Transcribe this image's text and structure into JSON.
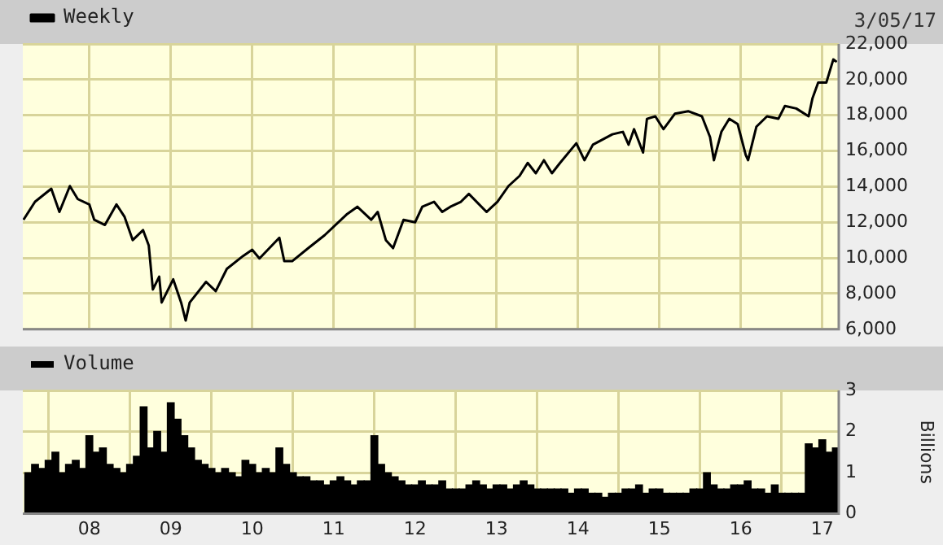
{
  "chart_data": [
    {
      "type": "line",
      "annotations": [
        "3/05/17"
      ],
      "legend": "top left",
      "grid": true,
      "tick_labels": "y",
      "marker": "none",
      "series": [
        {
          "name": "Weekly",
          "color": "#000000",
          "x": [
            "2007-03-10",
            "2007-05-01",
            "2007-07-13",
            "2007-08-19",
            "2007-10-05",
            "2007-11-10",
            "2008-01-01",
            "2008-01-23",
            "2008-03-10",
            "2008-05-01",
            "2008-06-07",
            "2008-07-13",
            "2008-08-29",
            "2008-09-24",
            "2008-10-12",
            "2008-11-10",
            "2008-11-21",
            "2009-01-12",
            "2009-02-17",
            "2009-03-07",
            "2009-03-25",
            "2009-06-07",
            "2009-07-20",
            "2009-09-09",
            "2009-11-21",
            "2010-01-01",
            "2010-02-03",
            "2010-05-01",
            "2010-05-23",
            "2010-06-28",
            "2010-09-09",
            "2010-11-21",
            "2011-02-28",
            "2011-04-16",
            "2011-06-17",
            "2011-07-16",
            "2011-08-22",
            "2011-09-24",
            "2011-11-10",
            "2012-01-01",
            "2012-02-03",
            "2012-03-25",
            "2012-05-01",
            "2012-06-07",
            "2012-07-24",
            "2012-08-29",
            "2012-11-17",
            "2013-01-05",
            "2013-02-24",
            "2013-04-13",
            "2013-05-19",
            "2013-06-25",
            "2013-07-31",
            "2013-09-06",
            "2013-10-12",
            "2013-12-24",
            "2014-01-30",
            "2014-03-07",
            "2014-06-03",
            "2014-07-20",
            "2014-08-15",
            "2014-09-09",
            "2014-10-19",
            "2014-11-06",
            "2014-12-13",
            "2015-01-19",
            "2015-03-10",
            "2015-05-08",
            "2015-07-09",
            "2015-08-15",
            "2015-09-02",
            "2015-10-05",
            "2015-11-10",
            "2015-12-17",
            "2016-01-23",
            "2016-02-03",
            "2016-03-10",
            "2016-04-27",
            "2016-06-17",
            "2016-07-16",
            "2016-09-06",
            "2016-10-31",
            "2016-11-18",
            "2016-12-13",
            "2017-01-19",
            "2017-02-20",
            "2017-03-05"
          ],
          "values": [
            12140,
            13150,
            13880,
            12580,
            14030,
            13300,
            13000,
            12140,
            11850,
            13000,
            12300,
            11000,
            11560,
            10700,
            8230,
            8950,
            7500,
            8800,
            7500,
            6490,
            7500,
            8660,
            8140,
            9390,
            10110,
            10460,
            9970,
            11130,
            9820,
            9820,
            10550,
            11270,
            12430,
            12870,
            12140,
            12580,
            11000,
            10550,
            12140,
            12000,
            12870,
            13150,
            12580,
            12870,
            13150,
            13590,
            12580,
            13150,
            14030,
            14600,
            15330,
            14750,
            15480,
            14750,
            15330,
            16430,
            15480,
            16350,
            16930,
            17070,
            16350,
            17220,
            15910,
            17800,
            17940,
            17220,
            18090,
            18230,
            17940,
            16780,
            15480,
            17070,
            17800,
            17510,
            15770,
            15480,
            17360,
            17940,
            17800,
            18520,
            18380,
            17940,
            18960,
            19830,
            19830,
            21130,
            20990
          ]
        }
      ],
      "xlim": [
        "2007-03-07",
        "2017-03-14"
      ],
      "xticks": [
        {
          "value": "2008-01",
          "label": null
        },
        {
          "value": "2009-01",
          "label": null
        },
        {
          "value": "2010-01",
          "label": null
        },
        {
          "value": "2011-01",
          "label": null
        },
        {
          "value": "2012-01",
          "label": null
        },
        {
          "value": "2013-01",
          "label": null
        },
        {
          "value": "2014-01",
          "label": null
        },
        {
          "value": "2015-01",
          "label": null
        },
        {
          "value": "2016-01",
          "label": null
        },
        {
          "value": "2017-01",
          "label": null
        }
      ],
      "ylim": [
        6000,
        22000
      ],
      "yticks": [
        {
          "value": 6000,
          "label": "6,000"
        },
        {
          "value": 8000,
          "label": "8,000"
        },
        {
          "value": 10000,
          "label": "10,000"
        },
        {
          "value": 12000,
          "label": "12,000"
        },
        {
          "value": 14000,
          "label": "14,000"
        },
        {
          "value": 16000,
          "label": "16,000"
        },
        {
          "value": 18000,
          "label": "18,000"
        },
        {
          "value": 20000,
          "label": "20,000"
        },
        {
          "value": 22000,
          "label": "22,000"
        }
      ]
    },
    {
      "type": "bar",
      "ylabel": "Billions",
      "legend": "top left",
      "grid": true,
      "series": [
        {
          "name": "Volume",
          "color": "#000000",
          "x": [
            "2007-04",
            "2007-05",
            "2007-06",
            "2007-07",
            "2007-08",
            "2007-09",
            "2007-10",
            "2007-11",
            "2007-12",
            "2008-01",
            "2008-02",
            "2008-03",
            "2008-04",
            "2008-05",
            "2008-06",
            "2008-07",
            "2008-08",
            "2008-09",
            "2008-10",
            "2008-11",
            "2008-12",
            "2009-01",
            "2009-02",
            "2009-03",
            "2009-04",
            "2009-05",
            "2009-06",
            "2009-07",
            "2009-08",
            "2009-09",
            "2009-10",
            "2009-11",
            "2009-12",
            "2010-01",
            "2010-02",
            "2010-03",
            "2010-04",
            "2010-05",
            "2010-06",
            "2010-07",
            "2010-08",
            "2010-09",
            "2010-10",
            "2010-11",
            "2010-12",
            "2011-01",
            "2011-02",
            "2011-03",
            "2011-04",
            "2011-05",
            "2011-06",
            "2011-07",
            "2011-08",
            "2011-09",
            "2011-10",
            "2011-11",
            "2011-12",
            "2012-01",
            "2012-02",
            "2012-03",
            "2012-04",
            "2012-05",
            "2012-06",
            "2012-07",
            "2012-08",
            "2012-09",
            "2012-10",
            "2012-11",
            "2012-12",
            "2013-01",
            "2013-02",
            "2013-03",
            "2013-04",
            "2013-05",
            "2013-06",
            "2013-07",
            "2013-08",
            "2013-09",
            "2013-10",
            "2013-11",
            "2013-12",
            "2014-01",
            "2014-02",
            "2014-03",
            "2014-04",
            "2014-05",
            "2014-06",
            "2014-07",
            "2014-08",
            "2014-09",
            "2014-10",
            "2014-11",
            "2014-12",
            "2015-01",
            "2015-02",
            "2015-03",
            "2015-04",
            "2015-05",
            "2015-06",
            "2015-07",
            "2015-08",
            "2015-09",
            "2015-10",
            "2015-11",
            "2015-12",
            "2016-01",
            "2016-02",
            "2016-03",
            "2016-04",
            "2016-05",
            "2016-06",
            "2016-07",
            "2016-08",
            "2016-09",
            "2016-10",
            "2016-11",
            "2016-12",
            "2017-01",
            "2017-02",
            "2017-03"
          ],
          "values": [
            1.0,
            1.2,
            1.1,
            1.3,
            1.5,
            1.0,
            1.2,
            1.3,
            1.1,
            1.9,
            1.5,
            1.6,
            1.2,
            1.1,
            1.0,
            1.2,
            1.4,
            2.6,
            1.6,
            2.0,
            1.5,
            2.7,
            2.3,
            1.9,
            1.6,
            1.3,
            1.2,
            1.1,
            1.0,
            1.1,
            1.0,
            0.9,
            1.3,
            1.2,
            1.0,
            1.1,
            1.0,
            1.6,
            1.2,
            1.0,
            0.9,
            0.9,
            0.8,
            0.8,
            0.7,
            0.8,
            0.9,
            0.8,
            0.7,
            0.8,
            0.8,
            1.9,
            1.2,
            1.0,
            0.9,
            0.8,
            0.7,
            0.7,
            0.8,
            0.7,
            0.7,
            0.8,
            0.6,
            0.6,
            0.6,
            0.7,
            0.8,
            0.7,
            0.6,
            0.7,
            0.7,
            0.6,
            0.7,
            0.8,
            0.7,
            0.6,
            0.6,
            0.6,
            0.6,
            0.6,
            0.5,
            0.6,
            0.6,
            0.5,
            0.5,
            0.4,
            0.5,
            0.5,
            0.6,
            0.6,
            0.7,
            0.5,
            0.6,
            0.6,
            0.5,
            0.5,
            0.5,
            0.5,
            0.6,
            0.6,
            1.0,
            0.7,
            0.6,
            0.6,
            0.7,
            0.7,
            0.8,
            0.6,
            0.6,
            0.5,
            0.7,
            0.5,
            0.5,
            0.5,
            0.5,
            1.7,
            1.6,
            1.8,
            1.5,
            1.6
          ]
        }
      ],
      "xlim": [
        "2007-03-07",
        "2017-03-14"
      ],
      "xticks": [
        {
          "value": "2008-01",
          "label": "08"
        },
        {
          "value": "2009-01",
          "label": "09"
        },
        {
          "value": "2010-01",
          "label": "10"
        },
        {
          "value": "2011-01",
          "label": "11"
        },
        {
          "value": "2012-01",
          "label": "12"
        },
        {
          "value": "2013-01",
          "label": "13"
        },
        {
          "value": "2014-01",
          "label": "14"
        },
        {
          "value": "2015-01",
          "label": "15"
        },
        {
          "value": "2016-01",
          "label": "16"
        },
        {
          "value": "2017-01",
          "label": "17"
        }
      ],
      "ylim": [
        0,
        3
      ],
      "yticks": [
        0,
        1,
        2,
        3
      ]
    }
  ]
}
